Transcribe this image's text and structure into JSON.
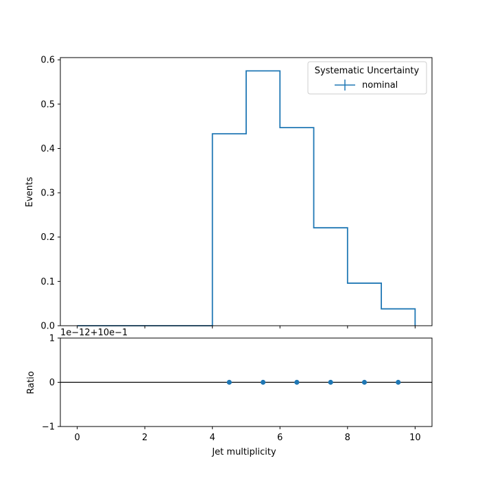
{
  "chart_data": [
    {
      "type": "line",
      "drawstyle": "steps",
      "ylabel": "Events",
      "xlim": [
        -0.5,
        10.5
      ],
      "ylim": [
        0,
        0.605
      ],
      "xticks": [
        0,
        2,
        4,
        6,
        8,
        10
      ],
      "yticks": [
        "0.0",
        "0.1",
        "0.2",
        "0.3",
        "0.4",
        "0.5",
        "0.6"
      ],
      "ytick_values": [
        0,
        0.1,
        0.2,
        0.3,
        0.4,
        0.5,
        0.6
      ],
      "bin_edges": [
        0,
        1,
        2,
        3,
        4,
        5,
        6,
        7,
        8,
        9,
        10
      ],
      "series": [
        {
          "name": "nominal",
          "color": "#1f77b4",
          "values": [
            0,
            0,
            0,
            0,
            0.433,
            0.575,
            0.447,
            0.221,
            0.096,
            0.038
          ]
        }
      ],
      "legend": {
        "title": "Systematic Uncertainty",
        "placement": "top-right",
        "entries": [
          "nominal"
        ]
      },
      "grid": false
    },
    {
      "type": "scatter",
      "xlabel": "Jet multiplicity",
      "ylabel": "Ratio",
      "offset_text": "1e−12+10e−1",
      "xlim": [
        -0.5,
        10.5
      ],
      "ylim": [
        -1,
        1
      ],
      "xticks": [
        "0",
        "2",
        "4",
        "6",
        "8",
        "10"
      ],
      "xtick_values": [
        0,
        2,
        4,
        6,
        8,
        10
      ],
      "yticks": [
        "−1",
        "0",
        "1"
      ],
      "ytick_values": [
        -1,
        0,
        1
      ],
      "reference_line": 0,
      "series": [
        {
          "color": "#1f77b4",
          "x": [
            4.5,
            5.5,
            6.5,
            7.5,
            8.5,
            9.5
          ],
          "y": [
            0,
            0,
            0,
            0,
            0,
            0
          ]
        }
      ],
      "grid": false
    }
  ]
}
